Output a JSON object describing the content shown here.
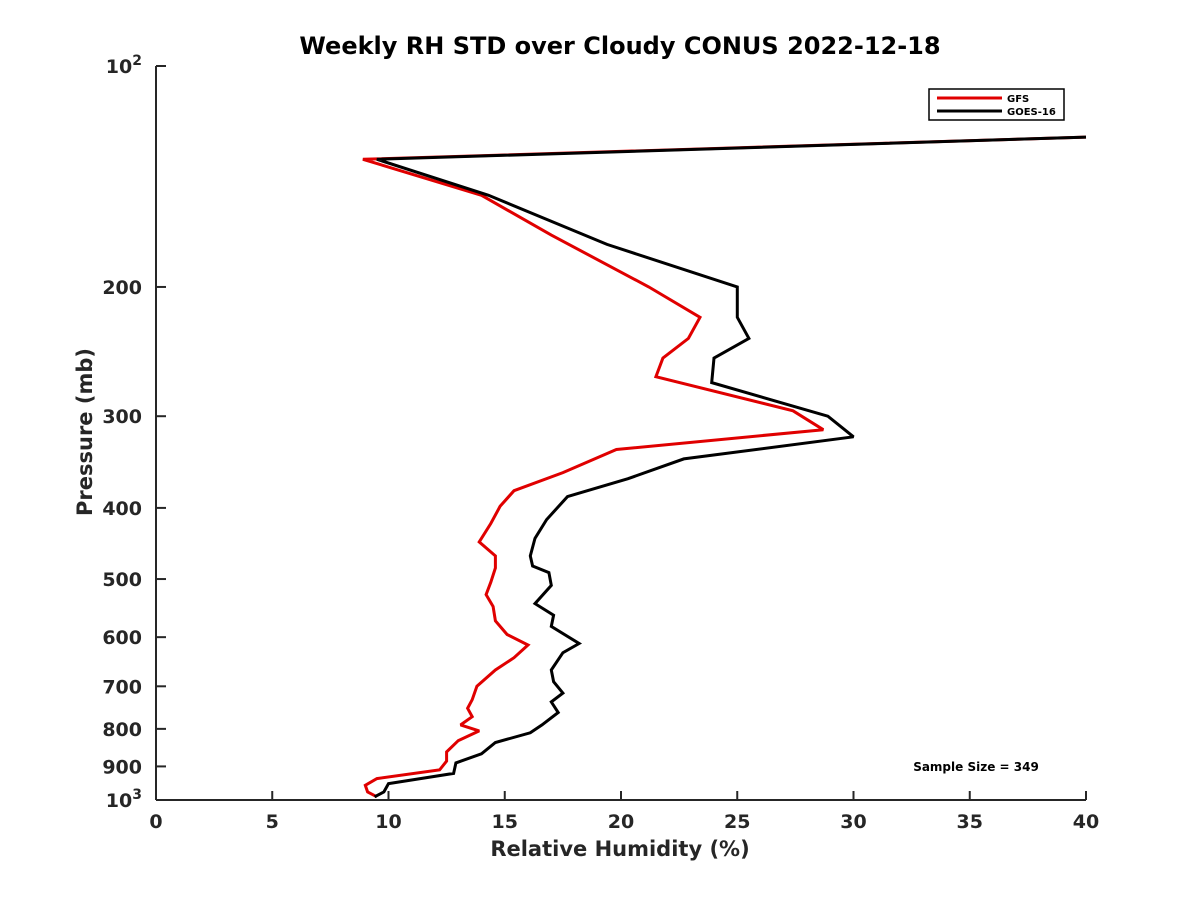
{
  "chart_data": {
    "type": "line",
    "title": "Weekly RH STD over Cloudy CONUS 2022-12-18",
    "xlabel": "Relative Humidity (%)",
    "ylabel": "Pressure (mb)",
    "xlim": [
      0,
      40
    ],
    "ylim": [
      100,
      1000
    ],
    "y_scale": "log",
    "y_reversed": true,
    "grid": false,
    "legend_position": "top-right",
    "x_ticks": [
      0,
      5,
      10,
      15,
      20,
      25,
      30,
      35,
      40
    ],
    "y_ticks": [
      {
        "value": 100,
        "base": "10",
        "exp": "2"
      },
      {
        "value": 200,
        "label": "200"
      },
      {
        "value": 300,
        "label": "300"
      },
      {
        "value": 400,
        "label": "400"
      },
      {
        "value": 500,
        "label": "500"
      },
      {
        "value": 600,
        "label": "600"
      },
      {
        "value": 700,
        "label": "700"
      },
      {
        "value": 800,
        "label": "800"
      },
      {
        "value": 900,
        "label": "900"
      },
      {
        "value": 1000,
        "base": "10",
        "exp": "3"
      }
    ],
    "series": [
      {
        "name": "GFS",
        "color": "#e00000",
        "points": [
          [
            40,
            125
          ],
          [
            8.9,
            134
          ],
          [
            14.0,
            150
          ],
          [
            17.0,
            170
          ],
          [
            21.2,
            200
          ],
          [
            23.4,
            220
          ],
          [
            22.9,
            235
          ],
          [
            21.8,
            250
          ],
          [
            21.5,
            265
          ],
          [
            27.4,
            295
          ],
          [
            28.7,
            313
          ],
          [
            19.8,
            333
          ],
          [
            17.5,
            358
          ],
          [
            15.4,
            379
          ],
          [
            14.8,
            398
          ],
          [
            14.4,
            420
          ],
          [
            13.9,
            445
          ],
          [
            14.6,
            465
          ],
          [
            14.6,
            483
          ],
          [
            14.4,
            505
          ],
          [
            14.2,
            525
          ],
          [
            14.5,
            545
          ],
          [
            14.6,
            570
          ],
          [
            15.1,
            595
          ],
          [
            16.0,
            615
          ],
          [
            15.4,
            640
          ],
          [
            14.6,
            665
          ],
          [
            13.8,
            700
          ],
          [
            13.6,
            730
          ],
          [
            13.4,
            750
          ],
          [
            13.6,
            770
          ],
          [
            13.1,
            790
          ],
          [
            13.9,
            805
          ],
          [
            13.0,
            830
          ],
          [
            12.5,
            860
          ],
          [
            12.5,
            885
          ],
          [
            12.2,
            910
          ],
          [
            9.5,
            935
          ],
          [
            9.0,
            955
          ],
          [
            9.1,
            975
          ],
          [
            9.5,
            990
          ]
        ]
      },
      {
        "name": "GOES-16",
        "color": "#000000",
        "points": [
          [
            40,
            125
          ],
          [
            9.5,
            134
          ],
          [
            14.3,
            150
          ],
          [
            19.4,
            175
          ],
          [
            25.0,
            200
          ],
          [
            25.0,
            220
          ],
          [
            25.5,
            235
          ],
          [
            24.0,
            250
          ],
          [
            23.9,
            270
          ],
          [
            28.9,
            300
          ],
          [
            30.0,
            320
          ],
          [
            22.7,
            343
          ],
          [
            20.3,
            365
          ],
          [
            17.7,
            386
          ],
          [
            16.8,
            415
          ],
          [
            16.3,
            440
          ],
          [
            16.1,
            465
          ],
          [
            16.2,
            480
          ],
          [
            16.9,
            490
          ],
          [
            17.0,
            510
          ],
          [
            16.3,
            540
          ],
          [
            17.1,
            560
          ],
          [
            17.0,
            580
          ],
          [
            18.2,
            612
          ],
          [
            17.5,
            630
          ],
          [
            17.0,
            665
          ],
          [
            17.1,
            690
          ],
          [
            17.5,
            715
          ],
          [
            17.0,
            735
          ],
          [
            17.3,
            760
          ],
          [
            16.6,
            790
          ],
          [
            16.1,
            810
          ],
          [
            14.6,
            835
          ],
          [
            14.0,
            865
          ],
          [
            12.9,
            890
          ],
          [
            12.8,
            920
          ],
          [
            10.0,
            950
          ],
          [
            9.8,
            975
          ],
          [
            9.4,
            990
          ]
        ]
      }
    ],
    "annotation": "Sample Size = 349"
  }
}
